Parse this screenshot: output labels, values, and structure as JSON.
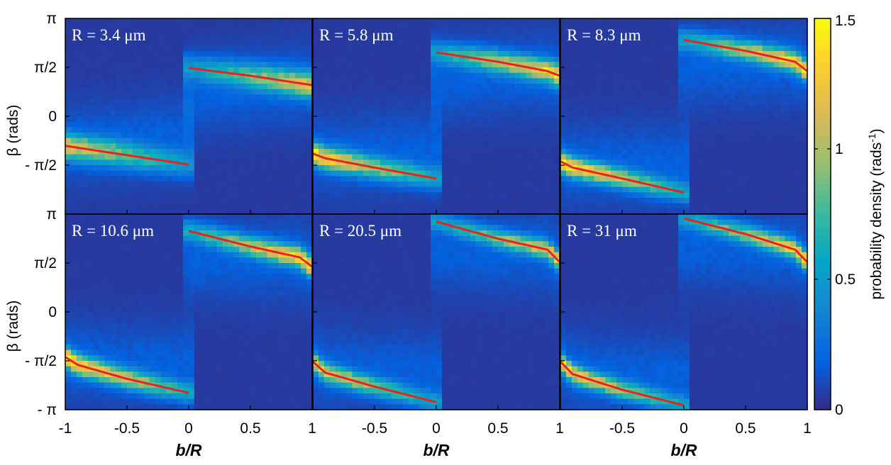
{
  "chart_data": {
    "type": "heatmap",
    "layout": {
      "rows": 2,
      "cols": 3
    },
    "xlabel_prefix": "b",
    "xlabel_suffix": "/R",
    "ylabel": "β (rads)",
    "xlim": [
      -1,
      1
    ],
    "ylim": [
      -3.1416,
      3.1416
    ],
    "x_ticks": [
      {
        "value": -1,
        "label": "-1"
      },
      {
        "value": -0.5,
        "label": "-0.5"
      },
      {
        "value": 0,
        "label": "0"
      },
      {
        "value": 0.5,
        "label": "0.5"
      },
      {
        "value": 1,
        "label": "1"
      }
    ],
    "y_ticks": [
      {
        "value": 3.1416,
        "label": "π"
      },
      {
        "value": 1.5708,
        "label": "π/2"
      },
      {
        "value": 0,
        "label": "0"
      },
      {
        "value": -1.5708,
        "label": "- π/2"
      },
      {
        "value": -3.1416,
        "label": "- π"
      }
    ],
    "colorbar": {
      "label": "probability density (rads",
      "label_sup": "-1",
      "label_close": ")",
      "range": [
        0,
        1.5
      ],
      "ticks": [
        {
          "value": 0,
          "label": "0"
        },
        {
          "value": 0.5,
          "label": "0.5"
        },
        {
          "value": 1,
          "label": "1"
        },
        {
          "value": 1.5,
          "label": "1.5"
        }
      ],
      "colormap": "parula"
    },
    "panels": [
      {
        "label": "R = 3.4 μm",
        "peak": 1.0,
        "upper_fit": {
          "x": [
            0,
            0.5,
            1.0
          ],
          "y": [
            1.55,
            1.3,
            1.0
          ],
          "width": 0.28
        },
        "lower_fit": {
          "x": [
            -1.0,
            -0.5,
            0
          ],
          "y": [
            -0.95,
            -1.25,
            -1.55
          ],
          "width": 0.28
        }
      },
      {
        "label": "R = 5.8 μm",
        "peak": 1.25,
        "upper_fit": {
          "x": [
            0,
            0.5,
            0.9,
            1.0
          ],
          "y": [
            2.05,
            1.75,
            1.45,
            1.3
          ],
          "width": 0.24
        },
        "lower_fit": {
          "x": [
            -1.0,
            -0.9,
            -0.5,
            0
          ],
          "y": [
            -1.2,
            -1.35,
            -1.65,
            -2.0
          ],
          "width": 0.24
        }
      },
      {
        "label": "R = 8.3 μm",
        "peak": 1.3,
        "upper_fit": {
          "x": [
            0,
            0.5,
            0.9,
            1.0
          ],
          "y": [
            2.45,
            2.1,
            1.75,
            1.45
          ],
          "width": 0.22
        },
        "lower_fit": {
          "x": [
            -1.0,
            -0.9,
            -0.5,
            0
          ],
          "y": [
            -1.45,
            -1.65,
            -2.0,
            -2.45
          ],
          "width": 0.22
        }
      },
      {
        "label": "R = 10.6 μm",
        "peak": 1.35,
        "upper_fit": {
          "x": [
            0,
            0.5,
            0.9,
            1.0
          ],
          "y": [
            2.6,
            2.1,
            1.75,
            1.45
          ],
          "width": 0.22
        },
        "lower_fit": {
          "x": [
            -1.0,
            -0.9,
            -0.5,
            0
          ],
          "y": [
            -1.45,
            -1.7,
            -2.15,
            -2.6
          ],
          "width": 0.22
        }
      },
      {
        "label": "R = 20.5 μm",
        "peak": 1.1,
        "upper_fit": {
          "x": [
            0,
            0.5,
            0.9,
            1.0
          ],
          "y": [
            2.9,
            2.35,
            2.0,
            1.6
          ],
          "width": 0.2
        },
        "lower_fit": {
          "x": [
            -1.0,
            -0.9,
            -0.5,
            0
          ],
          "y": [
            -1.6,
            -1.95,
            -2.4,
            -2.9
          ],
          "width": 0.2
        }
      },
      {
        "label": "R = 31 μm",
        "peak": 1.2,
        "upper_fit": {
          "x": [
            0,
            0.5,
            0.9,
            1.0
          ],
          "y": [
            3.0,
            2.5,
            2.0,
            1.6
          ],
          "width": 0.2
        },
        "lower_fit": {
          "x": [
            -1.0,
            -0.9,
            -0.5,
            0
          ],
          "y": [
            -1.6,
            -2.0,
            -2.5,
            -3.0
          ],
          "width": 0.2
        }
      }
    ]
  }
}
